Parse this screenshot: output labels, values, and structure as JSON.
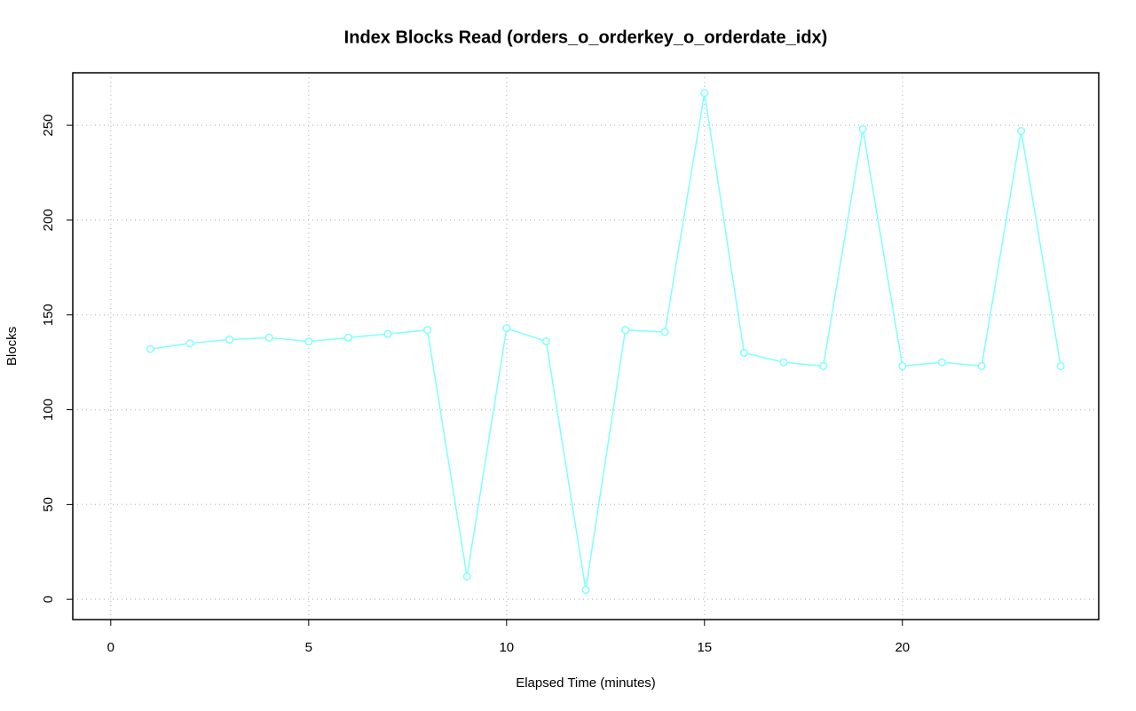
{
  "chart_data": {
    "type": "line",
    "title": "Index Blocks Read (orders_o_orderkey_o_orderdate_idx)",
    "x_label": "Elapsed Time (minutes)",
    "y_label": "Blocks",
    "x": [
      1,
      2,
      3,
      4,
      5,
      6,
      7,
      8,
      9,
      10,
      11,
      12,
      13,
      14,
      15,
      16,
      17,
      18,
      19,
      20,
      21,
      22,
      23,
      24
    ],
    "series": [
      {
        "color": "#80ffff",
        "values": [
          132,
          135,
          137,
          138,
          136,
          138,
          140,
          142,
          12,
          143,
          136,
          5,
          142,
          141,
          267,
          130,
          125,
          123,
          248,
          123,
          125,
          123,
          247,
          123
        ]
      }
    ],
    "xlim": [
      -0.96,
      24.96
    ],
    "xticks": [
      0,
      5,
      10,
      15,
      20
    ],
    "ylim": [
      -10.68,
      277.68
    ],
    "yticks": [
      0,
      50,
      100,
      150,
      200,
      250
    ],
    "grid": true
  }
}
